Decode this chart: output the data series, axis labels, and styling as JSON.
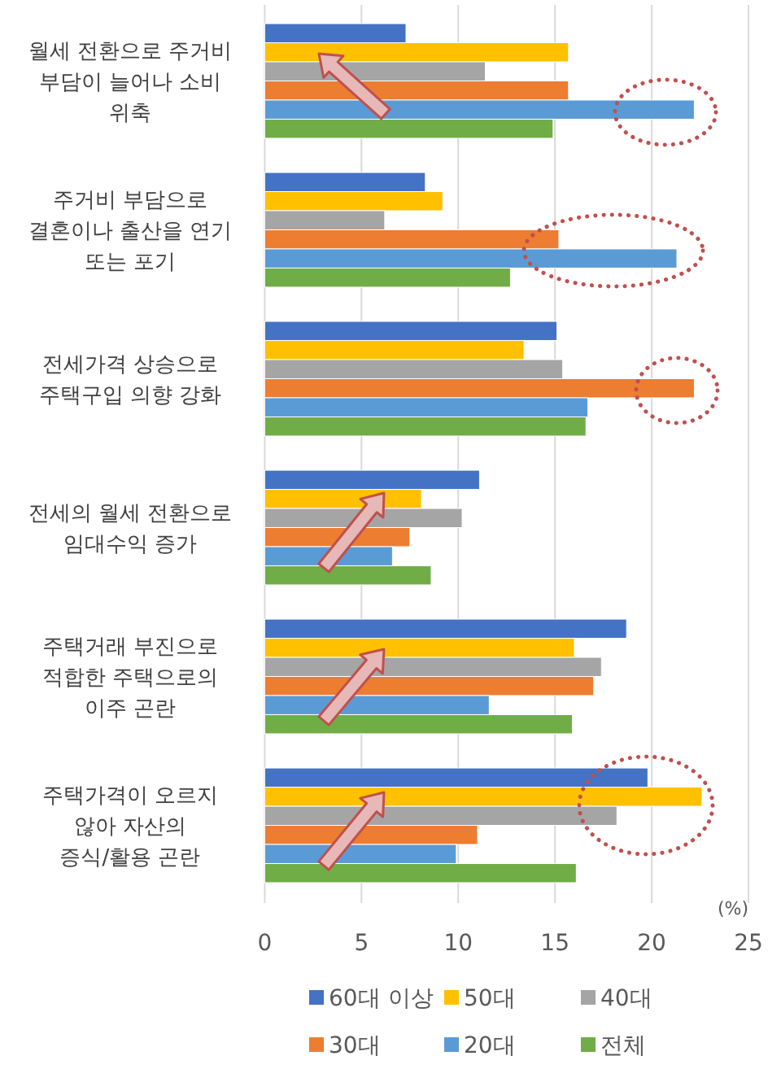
{
  "chart_data": {
    "type": "bar",
    "orientation": "horizontal",
    "xlabel": "(%)",
    "categories": [
      "월세 전환으로 주거비 부담이 늘어나 소비 위축",
      "주거비 부담으로 결혼이나 출산을 연기 또는 포기",
      "전세가격 상승으로 주택구입 의향 강화",
      "전세의 월세 전환으로 임대수익 증가",
      "주택거래 부진으로 적합한 주택으로의 이주 곤란",
      "주택가격이 오르지 않아 자산의 증식/활용 곤란"
    ],
    "series": [
      {
        "name": "60대 이상",
        "color": "#4472c4",
        "values": [
          7.3,
          8.3,
          15.1,
          11.1,
          18.7,
          19.8
        ]
      },
      {
        "name": "50대",
        "color": "#ffc000",
        "values": [
          15.7,
          9.2,
          13.4,
          8.1,
          16.0,
          22.6
        ]
      },
      {
        "name": "40대",
        "color": "#a5a5a5",
        "values": [
          11.4,
          6.2,
          15.4,
          10.2,
          17.4,
          18.2
        ]
      },
      {
        "name": "30대",
        "color": "#ed7d31",
        "values": [
          15.7,
          15.2,
          22.2,
          7.5,
          17.0,
          11.0
        ]
      },
      {
        "name": "20대",
        "color": "#5b9bd5",
        "values": [
          22.2,
          21.3,
          16.7,
          6.6,
          11.6,
          9.9
        ]
      },
      {
        "name": "전체",
        "color": "#70ad47",
        "values": [
          14.9,
          12.7,
          16.6,
          8.6,
          15.9,
          16.1
        ]
      }
    ],
    "xlim": [
      0,
      25
    ],
    "xticks": [
      0,
      5,
      10,
      15,
      20,
      25
    ],
    "grid": "x",
    "legend": "bottom"
  }
}
